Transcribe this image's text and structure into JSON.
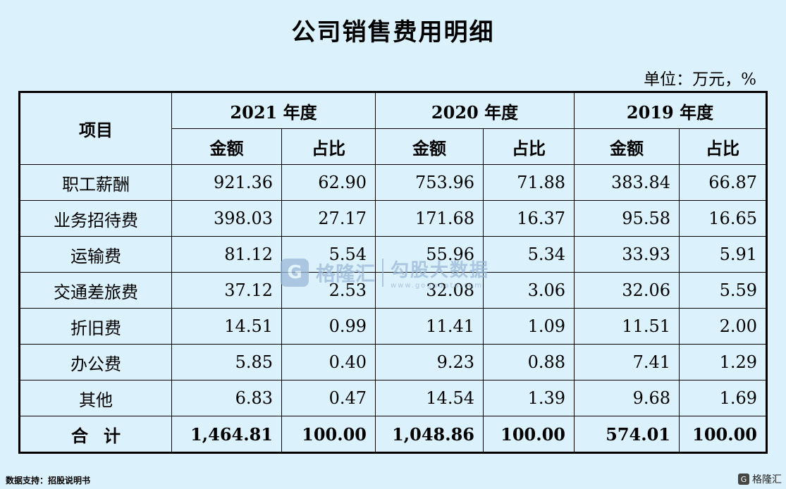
{
  "title": "公司销售费用明细",
  "unit": "单位：万元，%",
  "table": {
    "item_header": "项目",
    "years": [
      "2021 年度",
      "2020 年度",
      "2019 年度"
    ],
    "sub_headers": [
      "金额",
      "占比"
    ],
    "rows": [
      {
        "label": "职工薪酬",
        "values": [
          "921.36",
          "62.90",
          "753.96",
          "71.88",
          "383.84",
          "66.87"
        ]
      },
      {
        "label": "业务招待费",
        "values": [
          "398.03",
          "27.17",
          "171.68",
          "16.37",
          "95.58",
          "16.65"
        ]
      },
      {
        "label": "运输费",
        "values": [
          "81.12",
          "5.54",
          "55.96",
          "5.34",
          "33.93",
          "5.91"
        ]
      },
      {
        "label": "交通差旅费",
        "values": [
          "37.12",
          "2.53",
          "32.08",
          "3.06",
          "32.06",
          "5.59"
        ]
      },
      {
        "label": "折旧费",
        "values": [
          "14.51",
          "0.99",
          "11.41",
          "1.09",
          "11.51",
          "2.00"
        ]
      },
      {
        "label": "办公费",
        "values": [
          "5.85",
          "0.40",
          "9.23",
          "0.88",
          "7.41",
          "1.29"
        ]
      },
      {
        "label": "其他",
        "values": [
          "6.83",
          "0.47",
          "14.54",
          "1.39",
          "9.68",
          "1.69"
        ]
      }
    ],
    "total": {
      "label": "合计",
      "values": [
        "1,464.81",
        "100.00",
        "1,048.86",
        "100.00",
        "574.01",
        "100.00"
      ]
    }
  },
  "watermark": {
    "logo_char": "G",
    "brand": "格隆汇",
    "name": "勾股大数据",
    "url": "www.gogudata.com"
  },
  "footer": "数据支持：招股说明书",
  "corner_brand": "格隆汇"
}
